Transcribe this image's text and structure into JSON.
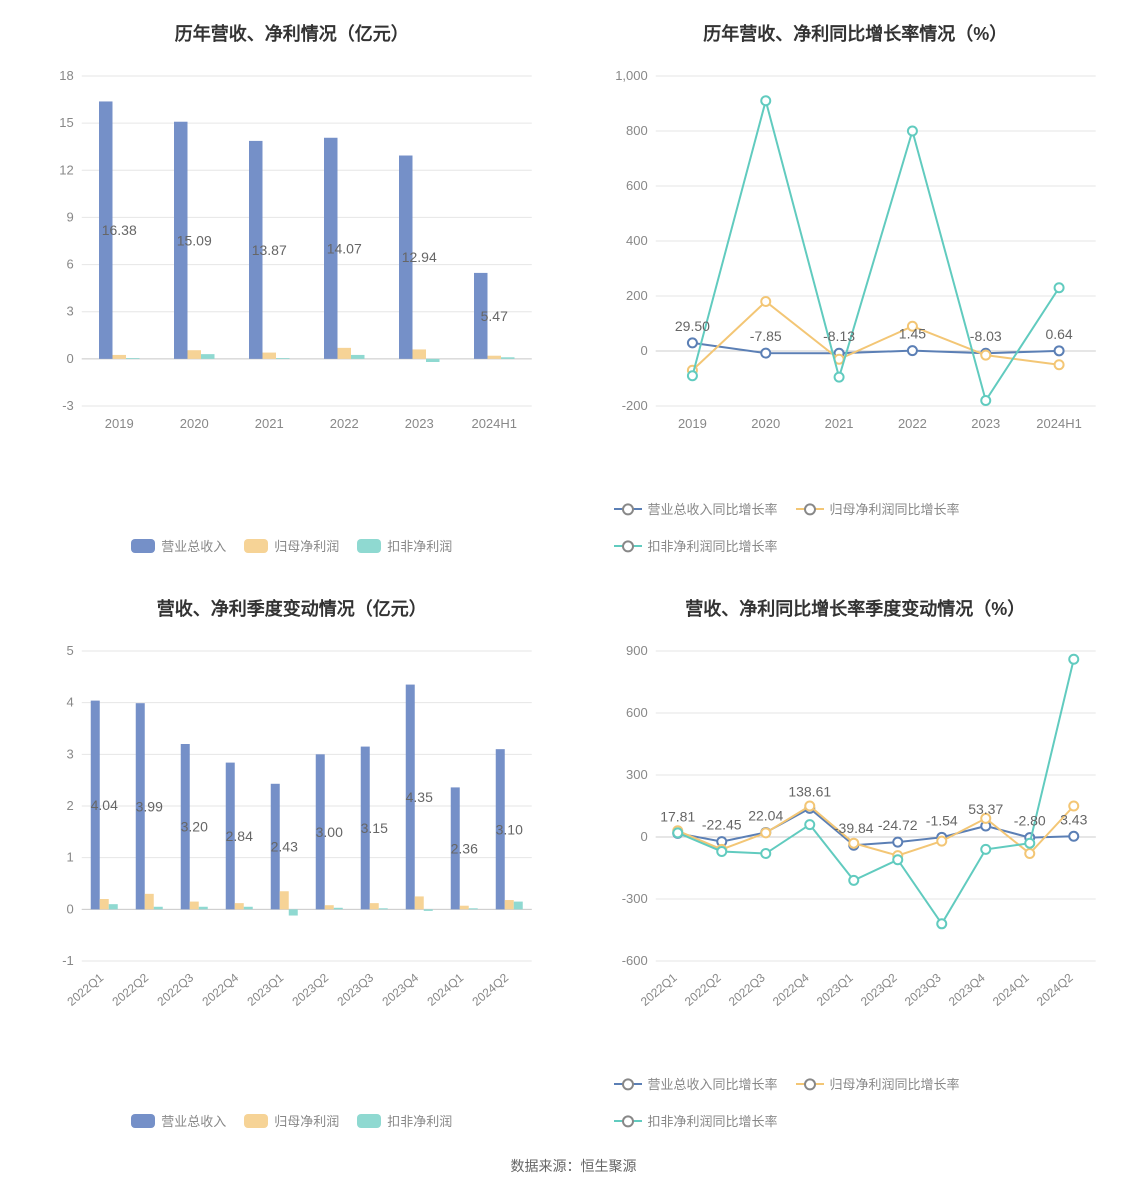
{
  "colors": {
    "bar_blue": "#7590c8",
    "bar_yellow": "#f6d396",
    "bar_teal": "#8fd9d1",
    "line_blue": "#5b7fb5",
    "line_yellow": "#f3c675",
    "line_teal": "#61cbbf",
    "grid": "#e6e6e6",
    "axis": "#cccccc",
    "tick_text": "#888888",
    "background": "#ffffff"
  },
  "footer": "数据来源：恒生聚源",
  "chart1": {
    "type": "bar",
    "title": "历年营收、净利情况（亿元）",
    "categories": [
      "2019",
      "2020",
      "2021",
      "2022",
      "2023",
      "2024H1"
    ],
    "series": [
      {
        "name": "营业总收入",
        "color_key": "bar_blue",
        "values": [
          16.38,
          15.09,
          13.87,
          14.07,
          12.94,
          5.47
        ],
        "show_labels": true
      },
      {
        "name": "归母净利润",
        "color_key": "bar_yellow",
        "values": [
          0.25,
          0.55,
          0.4,
          0.7,
          0.6,
          0.2
        ],
        "show_labels": false
      },
      {
        "name": "扣非净利润",
        "color_key": "bar_teal",
        "values": [
          0.05,
          0.3,
          0.05,
          0.25,
          -0.2,
          0.1
        ],
        "show_labels": false
      }
    ],
    "value_labels": [
      "16.38",
      "15.09",
      "13.87",
      "14.07",
      "12.94",
      "5.47"
    ],
    "ylim": [
      -3,
      18
    ],
    "ytick_step": 3,
    "bar_width": 0.18,
    "legend_style": "bar",
    "title_fontsize": 18,
    "label_fontsize": 14,
    "tick_fontsize": 13
  },
  "chart2": {
    "type": "line",
    "title": "历年营收、净利同比增长率情况（%）",
    "categories": [
      "2019",
      "2020",
      "2021",
      "2022",
      "2023",
      "2024H1"
    ],
    "series": [
      {
        "name": "营业总收入同比增长率",
        "color_key": "line_blue",
        "values": [
          29.5,
          -7.85,
          -8.13,
          1.45,
          -8.03,
          0.64
        ]
      },
      {
        "name": "归母净利润同比增长率",
        "color_key": "line_yellow",
        "values": [
          -70,
          180,
          -30,
          90,
          -15,
          -50
        ]
      },
      {
        "name": "扣非净利润同比增长率",
        "color_key": "line_teal",
        "values": [
          -90,
          910,
          -95,
          800,
          -180,
          230
        ]
      }
    ],
    "value_labels": [
      "29.50",
      "-7.85",
      "-8.13",
      "1.45",
      "-8.03",
      "0.64"
    ],
    "ylim": [
      -200,
      1000
    ],
    "ytick_step": 200,
    "legend_style": "line",
    "marker_style": "circle",
    "marker_size": 5,
    "line_width": 2,
    "title_fontsize": 18,
    "label_fontsize": 14,
    "tick_fontsize": 13
  },
  "chart3": {
    "type": "bar",
    "title": "营收、净利季度变动情况（亿元）",
    "categories": [
      "2022Q1",
      "2022Q2",
      "2022Q3",
      "2022Q4",
      "2023Q1",
      "2023Q2",
      "2023Q3",
      "2023Q4",
      "2024Q1",
      "2024Q2"
    ],
    "series": [
      {
        "name": "营业总收入",
        "color_key": "bar_blue",
        "values": [
          4.04,
          3.99,
          3.2,
          2.84,
          2.43,
          3.0,
          3.15,
          4.35,
          2.36,
          3.1
        ],
        "show_labels": true
      },
      {
        "name": "归母净利润",
        "color_key": "bar_yellow",
        "values": [
          0.2,
          0.3,
          0.15,
          0.12,
          0.35,
          0.08,
          0.12,
          0.25,
          0.07,
          0.18
        ],
        "show_labels": false
      },
      {
        "name": "扣非净利润",
        "color_key": "bar_teal",
        "values": [
          0.1,
          0.05,
          0.05,
          0.05,
          -0.12,
          0.03,
          0.02,
          -0.03,
          0.02,
          0.15
        ],
        "show_labels": false
      }
    ],
    "value_labels": [
      "4.04",
      "3.99",
      "3.20",
      "2.84",
      "2.43",
      "3.00",
      "3.15",
      "4.35",
      "2.36",
      "3.10"
    ],
    "ylim": [
      -1,
      5
    ],
    "ytick_step": 1,
    "bar_width": 0.2,
    "rotate_x": true,
    "legend_style": "bar",
    "title_fontsize": 18,
    "label_fontsize": 14,
    "tick_fontsize": 12
  },
  "chart4": {
    "type": "line",
    "title": "营收、净利同比增长率季度变动情况（%）",
    "categories": [
      "2022Q1",
      "2022Q2",
      "2022Q3",
      "2022Q4",
      "2023Q1",
      "2023Q2",
      "2023Q3",
      "2023Q4",
      "2024Q1",
      "2024Q2"
    ],
    "series": [
      {
        "name": "营业总收入同比增长率",
        "color_key": "line_blue",
        "values": [
          17.81,
          -22.45,
          22.04,
          138.61,
          -39.84,
          -24.72,
          -1.54,
          53.37,
          -2.8,
          3.43
        ]
      },
      {
        "name": "归母净利润同比增长率",
        "color_key": "line_yellow",
        "values": [
          30,
          -60,
          20,
          150,
          -30,
          -90,
          -20,
          90,
          -80,
          150
        ]
      },
      {
        "name": "扣非净利润同比增长率",
        "color_key": "line_teal",
        "values": [
          20,
          -70,
          -80,
          60,
          -210,
          -110,
          -420,
          -60,
          -30,
          860
        ]
      }
    ],
    "value_labels": [
      "17.81",
      "-22.45",
      "22.04",
      "138.61",
      "-39.84",
      "-24.72",
      "-1.54",
      "53.37",
      "-2.80",
      "3.43"
    ],
    "ylim": [
      -600,
      900
    ],
    "ytick_step": 300,
    "rotate_x": true,
    "legend_style": "line",
    "marker_style": "circle",
    "marker_size": 5,
    "line_width": 2,
    "title_fontsize": 18,
    "label_fontsize": 14,
    "tick_fontsize": 12
  }
}
